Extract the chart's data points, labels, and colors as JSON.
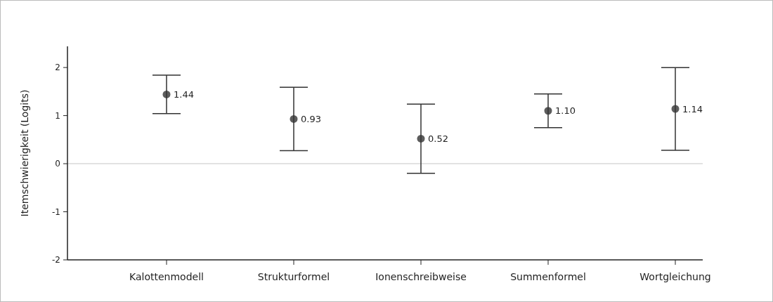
{
  "chart_data": {
    "type": "scatter",
    "ylabel": "Itemschwierigkeit (Logits)",
    "categories": [
      "Kalottenmodell",
      "Strukturformel",
      "Ionenschreibweise",
      "Summenformel",
      "Wortgleichung"
    ],
    "values": [
      1.44,
      0.93,
      0.52,
      1.1,
      1.14
    ],
    "errors": [
      0.4,
      0.66,
      0.72,
      0.35,
      0.86
    ],
    "value_labels": [
      "1.44",
      "0.93",
      "0.52",
      "1.10",
      "1.14"
    ],
    "color": "#333333",
    "marker": "circle",
    "ylim": [
      -2,
      2.44
    ],
    "yticks": [
      -2,
      -1,
      0,
      1,
      2
    ],
    "grid": false,
    "ref_lines": [
      {
        "axis": "y",
        "value": 0,
        "color": "#d9d9d9"
      }
    ]
  }
}
